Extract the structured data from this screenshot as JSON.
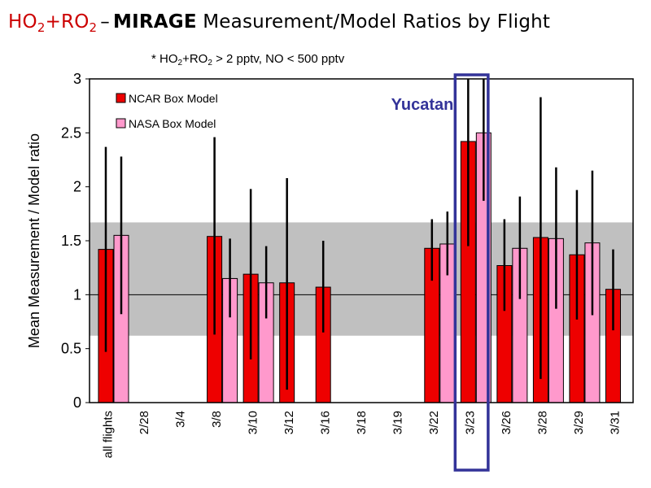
{
  "title": {
    "part1_ho": "HO",
    "part1_sub": "2",
    "part1_plus": "+RO",
    "part1_sub2": "2",
    "dash": "–",
    "part2": "MIRAGE",
    "part3": "Measurement/Model Ratios by Flight"
  },
  "subtitle": {
    "p1": "* HO",
    "s1": "2",
    "p2": "+RO",
    "s2": "2",
    "p3": " > 2 pptv, NO < 500 pptv"
  },
  "colors": {
    "ncar": "#ee0000",
    "nasa": "#ff99cc",
    "band": "#c0c0c0",
    "highlight": "#333399"
  },
  "chart_data": {
    "type": "bar",
    "title": "HO2+RO2 – MIRAGE Measurement/Model Ratios by Flight",
    "xlabel": "",
    "ylabel": "Mean Measurement / Model ratio",
    "ylim": [
      0,
      3
    ],
    "yticks": [
      "0",
      "0.5",
      "1",
      "1.5",
      "2",
      "2.5",
      "3"
    ],
    "categories": [
      "all flights",
      "2/28",
      "3/4",
      "3/8",
      "3/10",
      "3/12",
      "3/16",
      "3/18",
      "3/19",
      "3/22",
      "3/23",
      "3/26",
      "3/28",
      "3/29",
      "3/31"
    ],
    "series": [
      {
        "name": "NCAR Box Model",
        "values": [
          1.42,
          null,
          null,
          1.54,
          1.19,
          1.11,
          1.07,
          null,
          null,
          1.43,
          2.42,
          1.27,
          1.53,
          1.37,
          1.05
        ],
        "err_low": [
          0.47,
          null,
          null,
          0.63,
          0.4,
          0.12,
          0.65,
          null,
          null,
          1.13,
          1.45,
          0.85,
          0.22,
          0.77,
          0.67
        ],
        "err_high": [
          2.37,
          null,
          null,
          2.46,
          1.98,
          2.08,
          1.5,
          null,
          null,
          1.7,
          3.0,
          1.7,
          2.83,
          1.97,
          1.42
        ]
      },
      {
        "name": "NASA Box Model",
        "values": [
          1.55,
          null,
          null,
          1.15,
          1.11,
          null,
          null,
          null,
          null,
          1.47,
          2.5,
          1.43,
          1.52,
          1.48,
          null
        ],
        "err_low": [
          0.82,
          null,
          null,
          0.79,
          0.78,
          null,
          null,
          null,
          null,
          1.18,
          1.87,
          0.96,
          0.87,
          0.81,
          null
        ],
        "err_high": [
          2.28,
          null,
          null,
          1.52,
          1.45,
          null,
          null,
          null,
          null,
          1.77,
          3.0,
          1.91,
          2.18,
          2.15,
          null
        ]
      }
    ],
    "shaded_band": [
      0.62,
      1.67
    ],
    "reference_line": 1,
    "highlight_category": "3/23",
    "annotation": "Yucatan",
    "legend": "top-left"
  }
}
